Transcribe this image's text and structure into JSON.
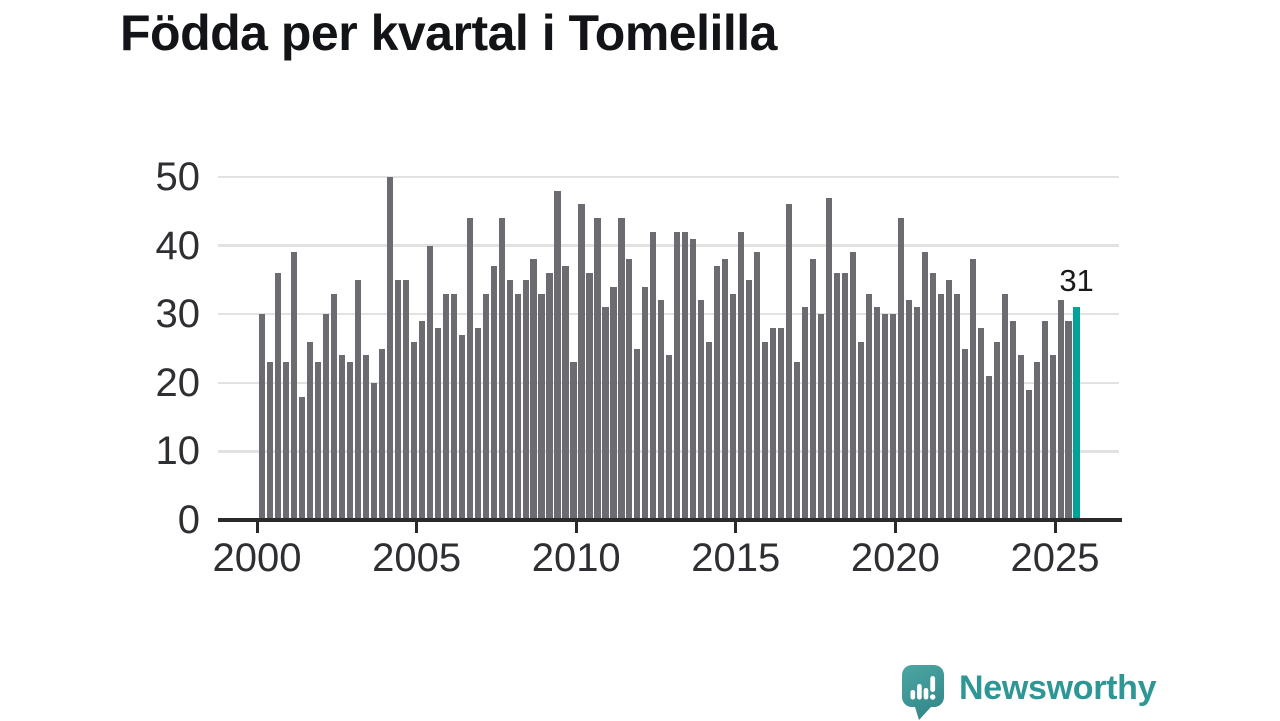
{
  "page": {
    "title": "Födda per kvartal i Tomelilla"
  },
  "chart_data": {
    "type": "bar",
    "title": "Födda per kvartal i Tomelilla",
    "x_unit": "quarter",
    "start_period": "2000-Q1",
    "end_period": "2025-Q3",
    "values": [
      30,
      23,
      36,
      23,
      39,
      18,
      26,
      23,
      30,
      33,
      24,
      23,
      35,
      24,
      20,
      25,
      50,
      35,
      35,
      26,
      29,
      40,
      28,
      33,
      33,
      27,
      44,
      28,
      33,
      37,
      44,
      35,
      33,
      35,
      38,
      33,
      36,
      48,
      37,
      23,
      46,
      36,
      44,
      31,
      34,
      44,
      38,
      25,
      34,
      42,
      32,
      24,
      42,
      42,
      41,
      32,
      26,
      37,
      38,
      33,
      42,
      35,
      39,
      26,
      28,
      28,
      46,
      23,
      31,
      38,
      30,
      47,
      36,
      36,
      39,
      26,
      33,
      31,
      30,
      30,
      44,
      32,
      31,
      39,
      36,
      33,
      35,
      33,
      25,
      38,
      28,
      21,
      26,
      33,
      29,
      24,
      19,
      23,
      29,
      24,
      32,
      29,
      31
    ],
    "highlight": {
      "index": 102,
      "period": "2025-Q3",
      "value": 31,
      "label": "31"
    },
    "x_tick_labels": [
      "2000",
      "2005",
      "2010",
      "2015",
      "2020",
      "2025"
    ],
    "y_tick_labels": [
      "0",
      "10",
      "20",
      "30",
      "40",
      "50"
    ],
    "y_ticks": [
      0,
      10,
      20,
      30,
      40,
      50
    ],
    "ylim": [
      0,
      50
    ],
    "grid": "horizontal-only",
    "legend": "none",
    "bar_color": "#6b6b71",
    "highlight_color": "#00a29a"
  },
  "branding": {
    "logo_text": "Newsworthy",
    "logo_color": "#2e9795"
  }
}
